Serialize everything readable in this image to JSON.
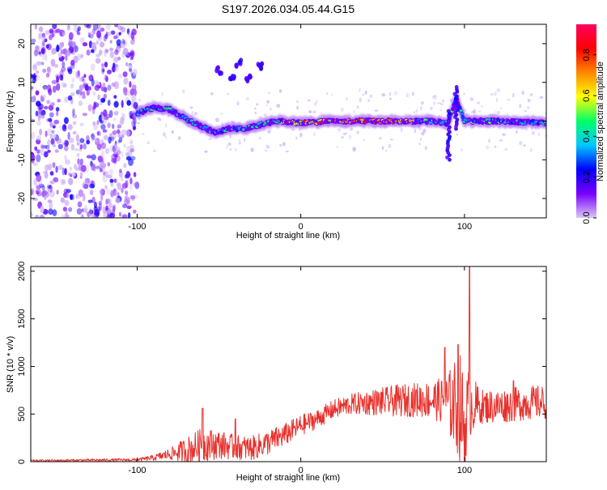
{
  "figure": {
    "title": "S197.2026.034.05.44.G15"
  },
  "chart_data": [
    {
      "id": "spectrogram",
      "type": "heatmap",
      "xlabel": "Height of straight line (km)",
      "ylabel": "Frequency (Hz)",
      "xlim": [
        -165,
        150
      ],
      "ylim": [
        -25,
        25
      ],
      "xticks": [
        -100,
        0,
        100
      ],
      "yticks": [
        -20,
        -10,
        0,
        10,
        20
      ],
      "colorbar": {
        "label": "Normalized spectral amplitude",
        "range": [
          0,
          0.95
        ],
        "ticks": [
          "0.0",
          "0.2",
          "0.4",
          "0.6",
          "0.8"
        ],
        "colors": [
          "#d8c8f4",
          "#7a00ff",
          "#0000ff",
          "#00c8ff",
          "#00ff66",
          "#ffff00",
          "#ff8800",
          "#ff0000",
          "#ff0060"
        ]
      },
      "noise_region_x": [
        -165,
        -100
      ],
      "ridge": [
        {
          "x": -100,
          "y": 2
        },
        {
          "x": -90,
          "y": 3.5
        },
        {
          "x": -80,
          "y": 3
        },
        {
          "x": -70,
          "y": 0.5
        },
        {
          "x": -60,
          "y": -1.5
        },
        {
          "x": -52,
          "y": -3
        },
        {
          "x": -45,
          "y": -2
        },
        {
          "x": -35,
          "y": -2
        },
        {
          "x": -25,
          "y": -1
        },
        {
          "x": -15,
          "y": 0
        },
        {
          "x": 0,
          "y": -0.5
        },
        {
          "x": 20,
          "y": 0
        },
        {
          "x": 50,
          "y": 0
        },
        {
          "x": 80,
          "y": 0
        },
        {
          "x": 90,
          "y": -0.5
        },
        {
          "x": 95,
          "y": 6
        },
        {
          "x": 100,
          "y": 0
        },
        {
          "x": 120,
          "y": 0
        },
        {
          "x": 150,
          "y": -0.5
        }
      ],
      "peak_region_x": [
        -10,
        70
      ],
      "isolated_blobs": [
        {
          "x": -42,
          "y": 11
        },
        {
          "x": -50,
          "y": 13
        },
        {
          "x": -38,
          "y": 15
        },
        {
          "x": -25,
          "y": 14
        },
        {
          "x": -32,
          "y": 11
        }
      ],
      "ridge_spikes": [
        {
          "x": 95,
          "y_from": -2,
          "y_to": 9
        },
        {
          "x": 90,
          "y_from": -10,
          "y_to": 3
        }
      ]
    },
    {
      "id": "snr",
      "type": "line",
      "xlabel": "Height of straight line (km)",
      "ylabel": "SNR (10 * v/v)",
      "xlim": [
        -165,
        150
      ],
      "ylim": [
        0,
        2050
      ],
      "xticks": [
        -100,
        0,
        100
      ],
      "yticks": [
        0,
        500,
        1000,
        1500,
        2000
      ],
      "series": [
        {
          "name": "SNR",
          "color": "#e8312c",
          "envelope": {
            "x": [
              -165,
              -100,
              -90,
              -80,
              -70,
              -60,
              -50,
              -40,
              -30,
              -20,
              -10,
              0,
              10,
              20,
              30,
              40,
              50,
              60,
              70,
              80,
              88,
              92,
              95,
              98,
              100,
              102,
              103,
              110,
              120,
              130,
              140,
              150
            ],
            "base": [
              10,
              20,
              40,
              80,
              120,
              180,
              180,
              150,
              140,
              200,
              280,
              380,
              450,
              550,
              600,
              620,
              630,
              640,
              650,
              650,
              640,
              600,
              600,
              550,
              300,
              600,
              600,
              580,
              580,
              600,
              620,
              620
            ],
            "amplitude": [
              10,
              15,
              30,
              60,
              140,
              180,
              150,
              130,
              130,
              130,
              120,
              110,
              100,
              100,
              110,
              130,
              150,
              170,
              180,
              200,
              250,
              400,
              500,
              600,
              450,
              400,
              350,
              180,
              180,
              180,
              180,
              180
            ]
          },
          "peaks": [
            {
              "x": 103,
              "y": 2050
            },
            {
              "x": 96,
              "y": 1230
            },
            {
              "x": 88,
              "y": 1200
            },
            {
              "x": -60,
              "y": 560
            },
            {
              "x": -40,
              "y": 450
            },
            {
              "x": 130,
              "y": 850
            }
          ]
        }
      ]
    }
  ]
}
